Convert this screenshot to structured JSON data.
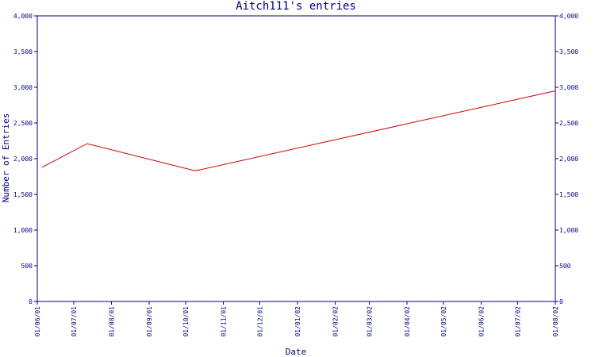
{
  "chart_data": {
    "type": "line",
    "title": "Aitch111's entries",
    "xlabel": "Date",
    "ylabel": "Number of Entries",
    "x_tick_labels": [
      "01/06/01",
      "01/07/01",
      "01/08/01",
      "01/09/01",
      "01/10/01",
      "01/11/01",
      "01/12/01",
      "01/01/02",
      "01/02/02",
      "01/03/02",
      "01/04/02",
      "01/05/02",
      "01/06/02",
      "01/07/02",
      "01/08/02"
    ],
    "y_ticks": [
      0,
      500,
      1000,
      1500,
      2000,
      2500,
      3000,
      3500,
      4000
    ],
    "y_tick_labels": [
      "0",
      "500",
      "1,000",
      "1,500",
      "2,000",
      "2,500",
      "3,000",
      "3,500",
      "4,000"
    ],
    "ylim": [
      0,
      4000
    ],
    "xlim": [
      "2001-06-01",
      "2002-08-01"
    ],
    "grid": false,
    "right_axis": true,
    "series": [
      {
        "color": "#cc0000",
        "points": [
          {
            "x": "2001-06-05",
            "y": 1880
          },
          {
            "x": "2001-07-12",
            "y": 2210
          },
          {
            "x": "2001-10-09",
            "y": 1830
          },
          {
            "x": "2002-08-01",
            "y": 2950
          }
        ]
      }
    ],
    "colors": {
      "axis": "#000080",
      "line": "#cc0000",
      "background": "#ffffff"
    }
  }
}
